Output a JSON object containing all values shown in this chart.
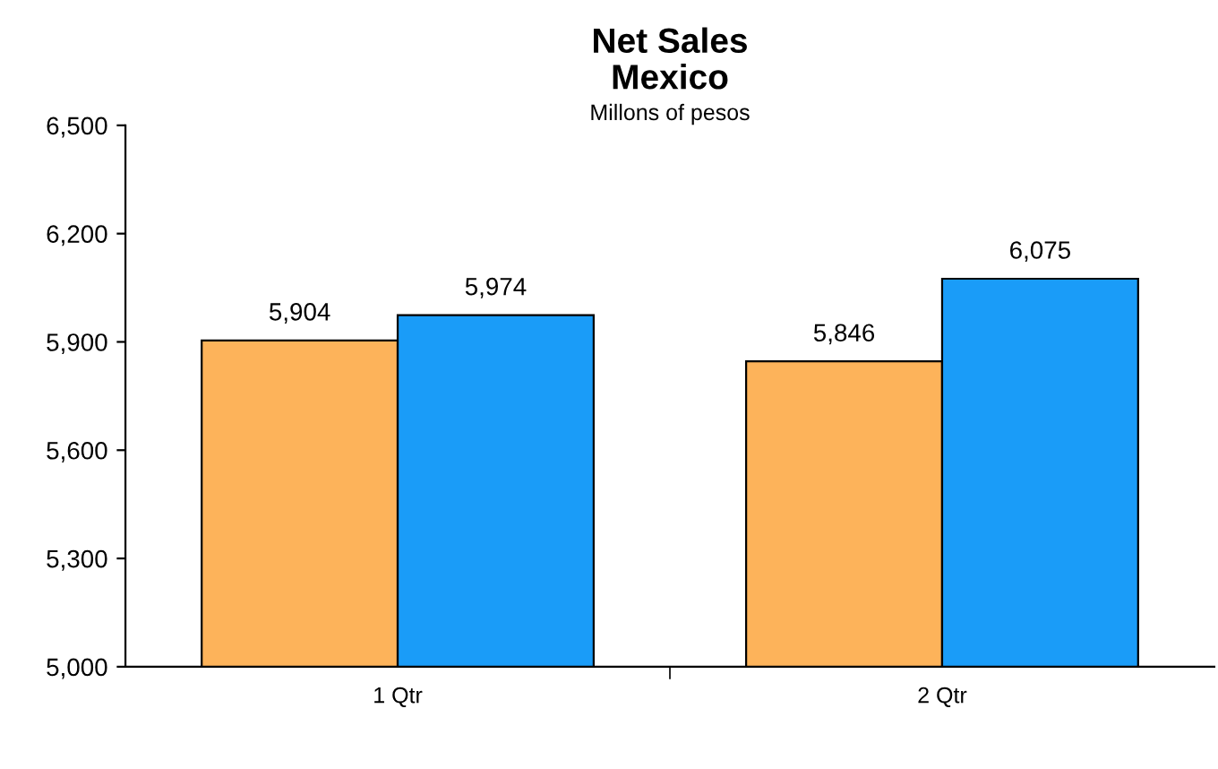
{
  "chart_data": {
    "type": "bar",
    "title": "Net Sales\nMexico",
    "subtitle": "Millons of pesos",
    "categories": [
      "1 Qtr",
      "2 Qtr"
    ],
    "series": [
      {
        "color": "#fdb35a",
        "values": [
          5904,
          5846
        ]
      },
      {
        "color": "#1a9cf8",
        "values": [
          5974,
          6075
        ]
      }
    ],
    "ylim": [
      5000,
      6500
    ],
    "yticks": [
      {
        "value": 5000,
        "label": "5,000"
      },
      {
        "value": 5300,
        "label": "5,300"
      },
      {
        "value": 5600,
        "label": "5,600"
      },
      {
        "value": 5900,
        "label": "5,900"
      },
      {
        "value": 6200,
        "label": "6,200"
      },
      {
        "value": 6500,
        "label": "6,500"
      }
    ],
    "value_labels": [
      [
        "5,904",
        "5,846"
      ],
      [
        "5,974",
        "6,075"
      ]
    ],
    "grid": false,
    "legend": false
  }
}
